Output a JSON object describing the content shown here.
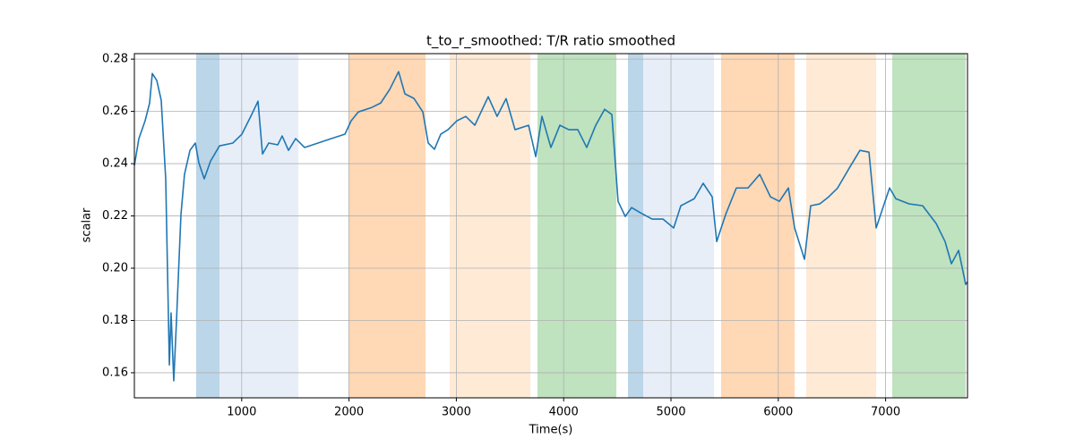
{
  "chart_data": {
    "type": "line",
    "title": "t_to_r_smoothed: T/R ratio smoothed",
    "x_label": "Time(s)",
    "y_label": "scalar",
    "xlim": [
      0,
      7763
    ],
    "ylim": [
      0.1504,
      0.2821
    ],
    "xticks": [
      1000,
      2000,
      3000,
      4000,
      5000,
      6000,
      7000
    ],
    "yticks": [
      0.16,
      0.18,
      {
        "value": 0.2,
        "label": "0.20"
      },
      0.22,
      0.24,
      0.26,
      0.28
    ],
    "grid": true,
    "span_opacity": 0.3,
    "spans": [
      {
        "start": 576,
        "end": 793,
        "color": "#1f77b4"
      },
      {
        "start": 793,
        "end": 1528,
        "color": "#aec7e8"
      },
      {
        "start": 1995,
        "end": 2713,
        "color": "#ff7f0e"
      },
      {
        "start": 2938,
        "end": 3690,
        "color": "#ffbb78"
      },
      {
        "start": 3756,
        "end": 4491,
        "color": "#2ca02c"
      },
      {
        "start": 4599,
        "end": 4741,
        "color": "#1f77b4"
      },
      {
        "start": 4741,
        "end": 5401,
        "color": "#aec7e8"
      },
      {
        "start": 5467,
        "end": 6152,
        "color": "#ff7f0e"
      },
      {
        "start": 6260,
        "end": 6912,
        "color": "#ffbb78"
      },
      {
        "start": 7062,
        "end": 7746,
        "color": "#2ca02c"
      }
    ],
    "series": [
      {
        "color": "#1f77b4",
        "x": [
          0,
          42,
          100,
          142,
          167,
          209,
          250,
          292,
          326,
          342,
          367,
          392,
          434,
          467,
          518,
          568,
          601,
          651,
          710,
          793,
          918,
          1002,
          1085,
          1152,
          1194,
          1252,
          1336,
          1377,
          1436,
          1503,
          1586,
          1711,
          1836,
          1962,
          2020,
          2087,
          2212,
          2295,
          2379,
          2462,
          2521,
          2604,
          2688,
          2738,
          2796,
          2855,
          2922,
          3005,
          3088,
          3172,
          3297,
          3380,
          3464,
          3547,
          3673,
          3740,
          3798,
          3881,
          3965,
          4048,
          4132,
          4215,
          4299,
          4382,
          4449,
          4507,
          4574,
          4633,
          4716,
          4825,
          4925,
          5025,
          5092,
          5217,
          5300,
          5384,
          5426,
          5509,
          5609,
          5718,
          5827,
          5927,
          6010,
          6094,
          6152,
          6244,
          6302,
          6386,
          6469,
          6553,
          6661,
          6761,
          6845,
          6912,
          6995,
          7037,
          7095,
          7220,
          7345,
          7471,
          7554,
          7613,
          7680,
          7746,
          7763
        ],
        "values": [
          0.2393,
          0.2496,
          0.2564,
          0.2632,
          0.2745,
          0.2718,
          0.2643,
          0.2342,
          0.163,
          0.1829,
          0.1569,
          0.1795,
          0.2205,
          0.2359,
          0.2451,
          0.2479,
          0.2403,
          0.2342,
          0.241,
          0.2468,
          0.2479,
          0.2513,
          0.2581,
          0.2639,
          0.2437,
          0.2479,
          0.2472,
          0.2506,
          0.2451,
          0.2496,
          0.2462,
          0.2479,
          0.2496,
          0.2513,
          0.2564,
          0.2598,
          0.2615,
          0.2632,
          0.2684,
          0.2752,
          0.2667,
          0.265,
          0.2598,
          0.2479,
          0.2455,
          0.2513,
          0.253,
          0.2564,
          0.2581,
          0.2547,
          0.2656,
          0.2581,
          0.2649,
          0.253,
          0.2547,
          0.2427,
          0.2581,
          0.2462,
          0.2547,
          0.253,
          0.253,
          0.2462,
          0.2547,
          0.2608,
          0.2588,
          0.2256,
          0.2198,
          0.2232,
          0.2212,
          0.2188,
          0.2188,
          0.2154,
          0.2239,
          0.2266,
          0.2325,
          0.2273,
          0.2102,
          0.2205,
          0.2307,
          0.2307,
          0.2359,
          0.2273,
          0.2256,
          0.2307,
          0.2154,
          0.2034,
          0.2239,
          0.2246,
          0.2273,
          0.2307,
          0.2383,
          0.2451,
          0.2444,
          0.2154,
          0.2256,
          0.2307,
          0.2266,
          0.2246,
          0.2239,
          0.2171,
          0.2102,
          0.2017,
          0.2068,
          0.1938,
          0.1948
        ]
      }
    ]
  }
}
